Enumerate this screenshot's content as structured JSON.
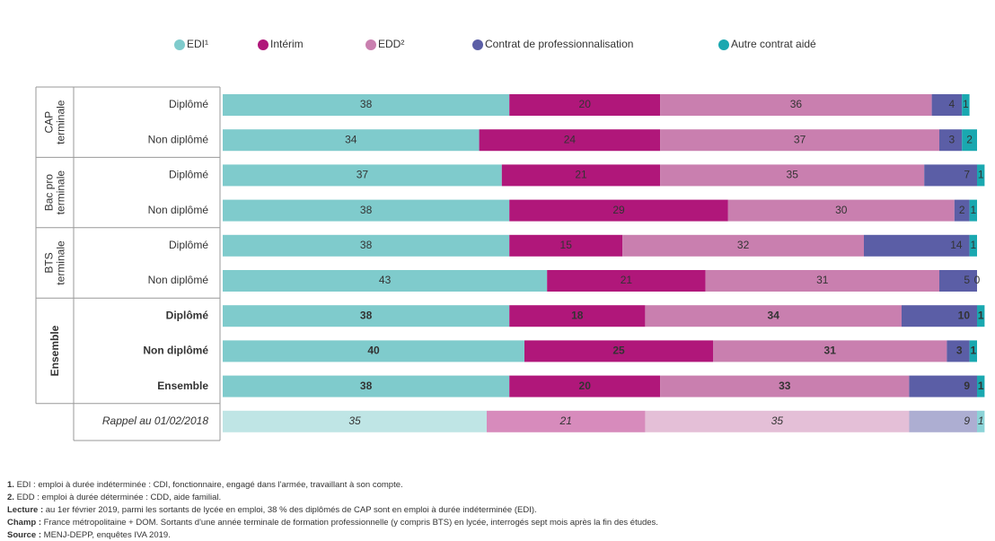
{
  "chart_data": {
    "type": "stacked_bar_horizontal",
    "categories": [
      "Diplômé",
      "Non diplômé",
      "Diplômé",
      "Non diplômé",
      "Diplômé",
      "Non diplômé",
      "Diplômé",
      "Non diplômé",
      "Ensemble",
      "Rappel au 01/02/2018"
    ],
    "groups": [
      {
        "label": [
          "CAP",
          "terminale"
        ],
        "count": 2
      },
      {
        "label": [
          "Bac pro",
          "terminale"
        ],
        "count": 2
      },
      {
        "label": [
          "BTS",
          "terminale"
        ],
        "count": 2
      },
      {
        "label": [
          "Ensemble"
        ],
        "count": 3
      }
    ],
    "xlim": [
      0,
      100
    ],
    "series": [
      {
        "name": "EDI¹",
        "color": "#7fcbcc",
        "values": [
          38,
          34,
          37,
          38,
          38,
          43,
          38,
          40,
          38,
          35
        ]
      },
      {
        "name": "Intérim",
        "color": "#b0177a",
        "values": [
          20,
          24,
          21,
          29,
          15,
          21,
          18,
          25,
          20,
          21
        ]
      },
      {
        "name": "EDD²",
        "color": "#c97faf",
        "values": [
          36,
          37,
          35,
          30,
          32,
          31,
          34,
          31,
          33,
          35
        ]
      },
      {
        "name": "Contrat de professionnalisation",
        "color": "#5b5ea6",
        "values": [
          4,
          3,
          7,
          2,
          14,
          5,
          10,
          3,
          9,
          9
        ]
      },
      {
        "name": "Autre contrat aidé",
        "color": "#1aa8b0",
        "values": [
          1,
          2,
          1,
          1,
          1,
          0,
          1,
          1,
          1,
          1
        ]
      }
    ],
    "notes": [
      {
        "label": "1.",
        "text": "EDI : emploi à durée indéterminée : CDI, fonctionnaire, engagé dans l'armée, travaillant à son compte."
      },
      {
        "label": "2.",
        "text": "EDD : emploi à durée déterminée : CDD, aide familial."
      },
      {
        "label": "Lecture :",
        "text": "au 1er février 2019, parmi les sortants de lycée en emploi, 38 % des diplômés de CAP sont en emploi à durée indéterminée (EDI)."
      },
      {
        "label": "Champ :",
        "text": "France métropolitaine + DOM. Sortants d'une année terminale de formation professionnelle (y compris BTS) en lycée, interrogés sept mois après la fin des études."
      },
      {
        "label": "Source :",
        "text": "MENJ-DEPP, enquêtes IVA 2019."
      }
    ]
  }
}
